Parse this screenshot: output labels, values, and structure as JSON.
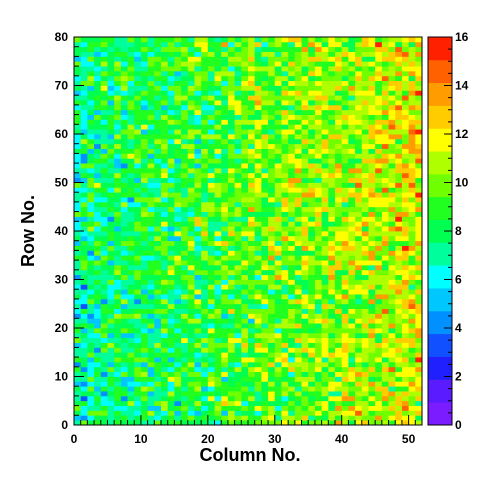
{
  "chart_data": {
    "type": "heatmap",
    "xlabel": "Column No.",
    "ylabel": "Row No.",
    "xlim": [
      0,
      52
    ],
    "ylim": [
      0,
      80
    ],
    "x_ticks": [
      0,
      10,
      20,
      30,
      40,
      50
    ],
    "y_ticks": [
      0,
      10,
      20,
      30,
      40,
      50,
      60,
      70,
      80
    ],
    "colorbar": {
      "range": [
        0,
        16
      ],
      "ticks": [
        0,
        2,
        4,
        6,
        8,
        10,
        12,
        14,
        16
      ],
      "levels": [
        "#7a1cff",
        "#5a1cff",
        "#2020ff",
        "#1050ff",
        "#0090ff",
        "#00c8ff",
        "#00ffff",
        "#00ff9c",
        "#00ff50",
        "#20ff20",
        "#70ff00",
        "#b0ff00",
        "#ffff00",
        "#ffcc00",
        "#ff9c00",
        "#ff6000",
        "#ff2000"
      ]
    },
    "grid": {
      "columns": 52,
      "rows": 80,
      "description": "Random cell counts per bin, ranging roughly 4-15; lower values (about 6-9) predominate at low column numbers and higher values (about 11-13) at column numbers above 30."
    }
  }
}
